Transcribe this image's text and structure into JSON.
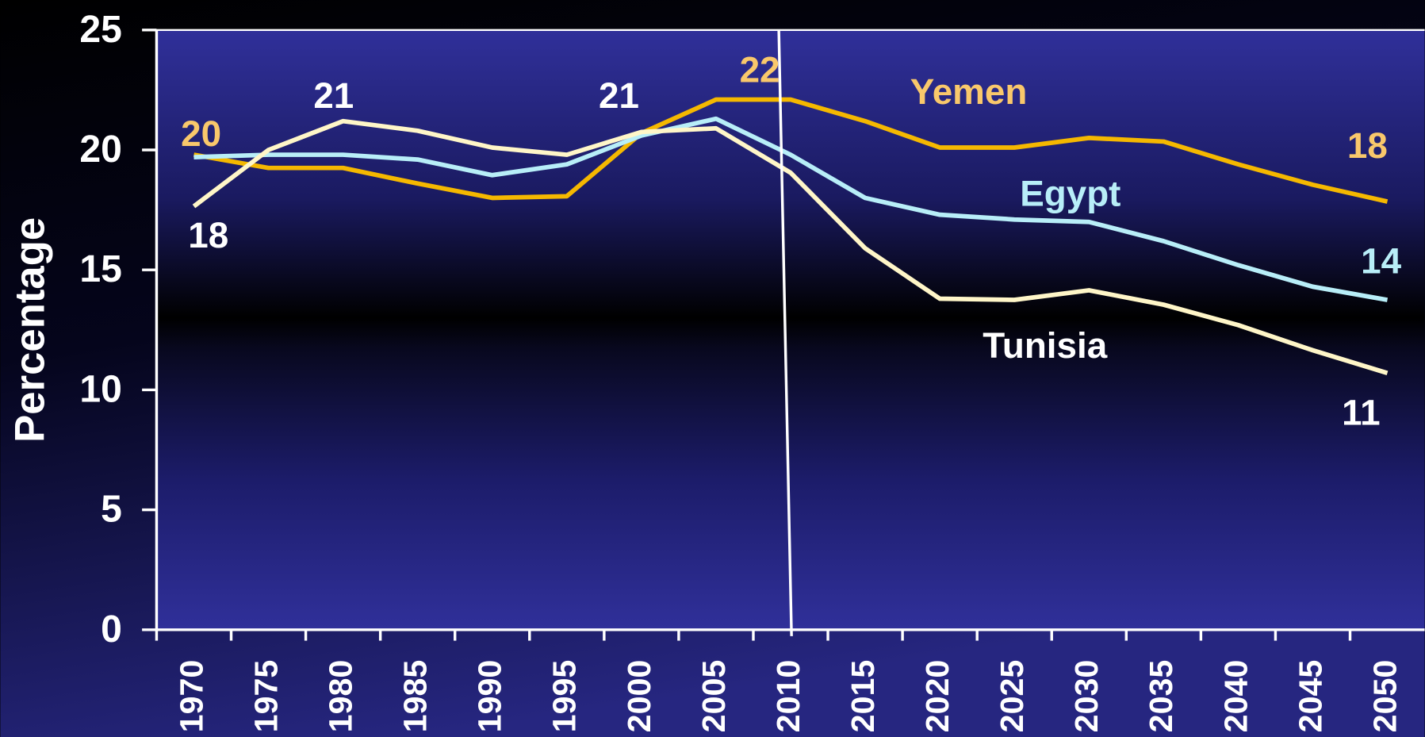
{
  "chart_data": {
    "type": "line",
    "y_label": "Percentage",
    "x": [
      1970,
      1975,
      1980,
      1985,
      1990,
      1995,
      2000,
      2005,
      2010,
      2015,
      2020,
      2025,
      2030,
      2035,
      2040,
      2045,
      2050
    ],
    "series": [
      {
        "name": "Yemen",
        "color": "#f5b800",
        "values": [
          19.8,
          19.25,
          19.25,
          18.6,
          18.0,
          18.07,
          20.7,
          22.1,
          22.1,
          21.2,
          20.1,
          20.1,
          20.5,
          20.35,
          19.4,
          18.55,
          17.85
        ]
      },
      {
        "name": "Egypt",
        "color": "#b8eef8",
        "values": [
          19.7,
          19.8,
          19.8,
          19.6,
          18.95,
          19.4,
          20.6,
          21.3,
          19.8,
          18.0,
          17.3,
          17.1,
          17.0,
          16.2,
          15.2,
          14.3,
          13.75
        ]
      },
      {
        "name": "Tunisia",
        "color": "#fff6c8",
        "values": [
          17.65,
          20.0,
          21.2,
          20.8,
          20.1,
          19.8,
          20.75,
          20.9,
          19.05,
          15.9,
          13.8,
          13.75,
          14.15,
          13.55,
          12.7,
          11.65,
          10.7
        ]
      }
    ],
    "annotations": [
      {
        "text": "20",
        "color": "#f9c86b"
      },
      {
        "text": "18",
        "color": "#ffffff"
      },
      {
        "text": "21",
        "color": "#ffffff"
      },
      {
        "text": "21",
        "color": "#ffffff"
      },
      {
        "text": "22",
        "color": "#f9c86b"
      },
      {
        "text": "Yemen",
        "color": "#f9c86b"
      },
      {
        "text": "18",
        "color": "#f9c86b"
      },
      {
        "text": "Egypt",
        "color": "#b8eef8"
      },
      {
        "text": "14",
        "color": "#b8eef8"
      },
      {
        "text": "Tunisia",
        "color": "#ffffff"
      },
      {
        "text": "11",
        "color": "#ffffff"
      }
    ],
    "xlim": [
      1967.5,
      2052.5
    ],
    "xticks": [
      1970,
      1975,
      1980,
      1985,
      1990,
      1995,
      2000,
      2005,
      2010,
      2015,
      2020,
      2025,
      2030,
      2035,
      2040,
      2045,
      2050
    ],
    "ylim": [
      0,
      25
    ],
    "yticks": [
      0,
      5,
      10,
      15,
      20,
      25
    ]
  }
}
